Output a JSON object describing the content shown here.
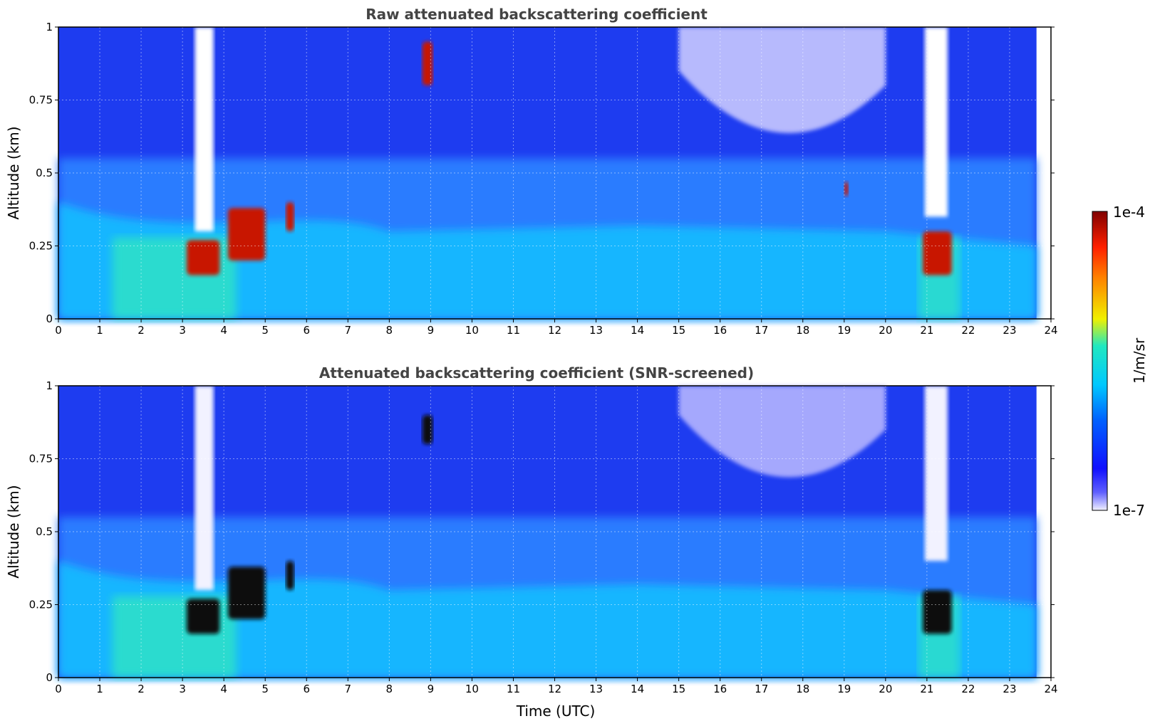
{
  "chart_data": [
    {
      "type": "heatmap",
      "title": "Raw attenuated backscattering coefficient",
      "xlabel": "",
      "ylabel": "Altitude (km)",
      "xlim": [
        0,
        24
      ],
      "ylim": [
        0,
        1
      ],
      "x_ticks": [
        "0",
        "1",
        "2",
        "3",
        "4",
        "5",
        "6",
        "7",
        "8",
        "9",
        "10",
        "11",
        "12",
        "13",
        "14",
        "15",
        "16",
        "17",
        "18",
        "19",
        "20",
        "21",
        "22",
        "23",
        "24"
      ],
      "y_ticks": [
        "0",
        "0.25",
        "0.5",
        "0.75",
        "1"
      ],
      "grid": true,
      "data_end_time": 23.65,
      "features": [
        {
          "kind": "boundary-layer",
          "t_start": 0,
          "t_end": 23.65,
          "top_km_range": [
            0.25,
            0.4
          ]
        },
        {
          "kind": "no-signal-gap",
          "t_start": 3.3,
          "t_end": 3.75,
          "bottom_km": 0.3
        },
        {
          "kind": "no-signal-gap",
          "t_start": 20.95,
          "t_end": 21.5,
          "bottom_km": 0.35
        },
        {
          "kind": "sparse-gap",
          "t_start": 15.0,
          "t_end": 20.0,
          "bottom_km": 0.6
        },
        {
          "kind": "strong-cloud",
          "t_start": 3.1,
          "t_end": 3.9,
          "base_km": 0.15,
          "top_km": 0.27
        },
        {
          "kind": "strong-cloud",
          "t_start": 4.1,
          "t_end": 5.0,
          "base_km": 0.2,
          "top_km": 0.38
        },
        {
          "kind": "strong-cloud",
          "t_start": 5.5,
          "t_end": 5.7,
          "base_km": 0.3,
          "top_km": 0.4
        },
        {
          "kind": "strong-cloud",
          "t_start": 8.8,
          "t_end": 9.05,
          "base_km": 0.8,
          "top_km": 0.95
        },
        {
          "kind": "strong-cloud",
          "t_start": 19.0,
          "t_end": 19.1,
          "base_km": 0.42,
          "top_km": 0.47
        },
        {
          "kind": "strong-cloud",
          "t_start": 20.9,
          "t_end": 21.6,
          "base_km": 0.15,
          "top_km": 0.3
        }
      ]
    },
    {
      "type": "heatmap",
      "title": "Attenuated backscattering coefficient (SNR-screened)",
      "xlabel": "Time (UTC)",
      "ylabel": "Altitude (km)",
      "xlim": [
        0,
        24
      ],
      "ylim": [
        0,
        1
      ],
      "x_ticks": [
        "0",
        "1",
        "2",
        "3",
        "4",
        "5",
        "6",
        "7",
        "8",
        "9",
        "10",
        "11",
        "12",
        "13",
        "14",
        "15",
        "16",
        "17",
        "18",
        "19",
        "20",
        "21",
        "22",
        "23",
        "24"
      ],
      "y_ticks": [
        "0",
        "0.25",
        "0.5",
        "0.75",
        "1"
      ],
      "grid": true,
      "data_end_time": 23.65,
      "features": [
        {
          "kind": "boundary-layer",
          "t_start": 0,
          "t_end": 23.65,
          "top_km_range": [
            0.25,
            0.4
          ]
        },
        {
          "kind": "no-signal-gap",
          "t_start": 3.3,
          "t_end": 3.75,
          "bottom_km": 0.3
        },
        {
          "kind": "no-signal-gap",
          "t_start": 20.95,
          "t_end": 21.5,
          "bottom_km": 0.4
        },
        {
          "kind": "screened-region",
          "t_start": 15.0,
          "t_end": 20.0,
          "bottom_km": 0.65
        },
        {
          "kind": "saturated-cloud",
          "t_start": 3.1,
          "t_end": 3.9,
          "base_km": 0.15,
          "top_km": 0.27
        },
        {
          "kind": "saturated-cloud",
          "t_start": 4.1,
          "t_end": 5.0,
          "base_km": 0.2,
          "top_km": 0.38
        },
        {
          "kind": "saturated-cloud",
          "t_start": 5.5,
          "t_end": 5.7,
          "base_km": 0.3,
          "top_km": 0.4
        },
        {
          "kind": "saturated-cloud",
          "t_start": 8.8,
          "t_end": 9.05,
          "base_km": 0.8,
          "top_km": 0.9
        },
        {
          "kind": "saturated-cloud",
          "t_start": 20.9,
          "t_end": 21.6,
          "base_km": 0.15,
          "top_km": 0.3
        }
      ]
    }
  ],
  "colorbar": {
    "min_label": "1e-7",
    "max_label": "1e-4",
    "label": "1/m/sr",
    "scale": "log",
    "range": [
      1e-07,
      0.0001
    ],
    "colors": [
      "#f0f0ff",
      "#1010ff",
      "#00c8ff",
      "#f0f000",
      "#ff5000",
      "#800000"
    ]
  }
}
